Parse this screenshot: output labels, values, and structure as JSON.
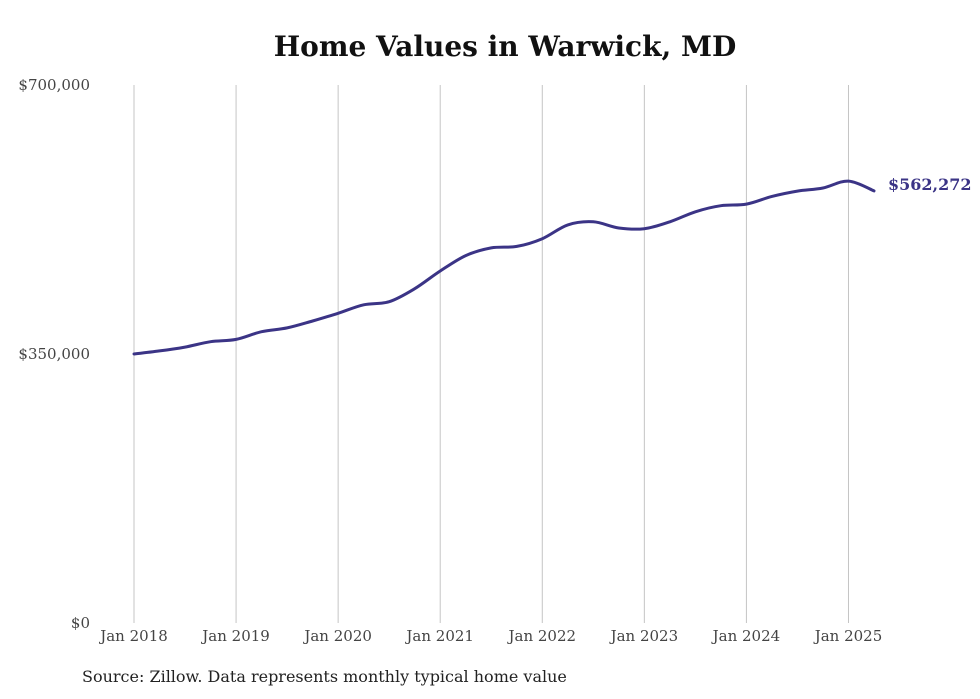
{
  "chart_data": {
    "type": "line",
    "title": "Home Values in Warwick, MD",
    "source": "Source: Zillow. Data represents monthly typical home value",
    "y_ticks": [
      "$0",
      "$350,000",
      "$700,000"
    ],
    "ylim": [
      0,
      700000
    ],
    "x_ticks": [
      "Jan 2018",
      "Jan 2019",
      "Jan 2020",
      "Jan 2021",
      "Jan 2022",
      "Jan 2023",
      "Jan 2024",
      "Jan 2025"
    ],
    "x_range": [
      "2018-01",
      "2025-04"
    ],
    "grid": "vertical",
    "line_color": "#3b3486",
    "end_label": "$562,272",
    "series": [
      {
        "x": [
          "2018-01",
          "2018-04",
          "2018-07",
          "2018-10",
          "2019-01",
          "2019-04",
          "2019-07",
          "2019-10",
          "2020-01",
          "2020-04",
          "2020-07",
          "2020-10",
          "2021-01",
          "2021-04",
          "2021-07",
          "2021-10",
          "2022-01",
          "2022-04",
          "2022-07",
          "2022-10",
          "2023-01",
          "2023-04",
          "2023-07",
          "2023-10",
          "2024-01",
          "2024-04",
          "2024-07",
          "2024-10",
          "2025-01",
          "2025-04"
        ],
        "values": [
          350000,
          354000,
          359000,
          366000,
          369000,
          379000,
          384000,
          393000,
          403000,
          414000,
          418000,
          435000,
          458000,
          478000,
          488000,
          490000,
          500000,
          518000,
          522000,
          514000,
          513000,
          522000,
          535000,
          543000,
          545000,
          555000,
          562000,
          566000,
          575000,
          562272
        ]
      }
    ]
  }
}
